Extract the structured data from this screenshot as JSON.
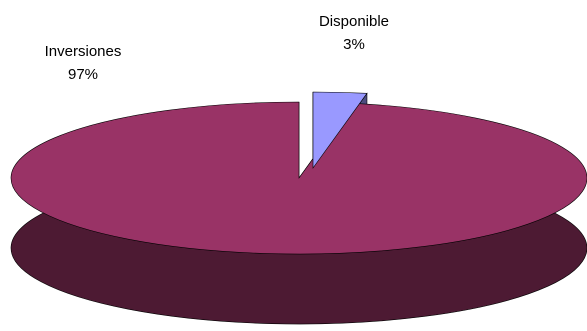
{
  "chart_data": {
    "type": "pie",
    "title": "",
    "style": "3d-exploded",
    "slices": [
      {
        "label": "Inversiones",
        "value": 97,
        "percent_label": "97%",
        "color": "#993366",
        "side_color": "#4D1A33"
      },
      {
        "label": "Disponible",
        "value": 3,
        "percent_label": "3%",
        "color": "#9999FF",
        "side_color": "#4D4D80"
      }
    ]
  }
}
